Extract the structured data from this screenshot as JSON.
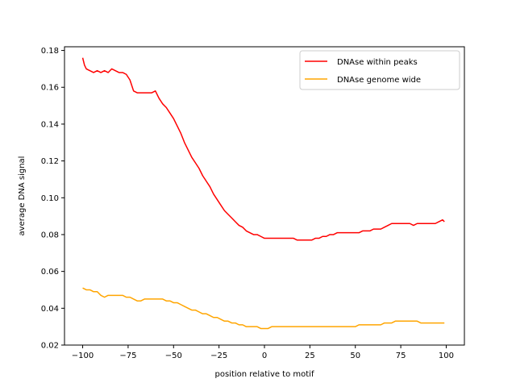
{
  "chart_data": {
    "type": "line",
    "title": "",
    "xlabel": "position relative to motif",
    "ylabel": "average DNA signal",
    "xlim": [
      -110,
      110
    ],
    "ylim": [
      0.02,
      0.182
    ],
    "xticks": [
      -100,
      -75,
      -50,
      -25,
      0,
      25,
      50,
      75,
      100
    ],
    "xtick_labels": [
      "−100",
      "−75",
      "−50",
      "−25",
      "0",
      "25",
      "50",
      "75",
      "100"
    ],
    "yticks": [
      0.02,
      0.04,
      0.06,
      0.08,
      0.1,
      0.12,
      0.14,
      0.16,
      0.18
    ],
    "ytick_labels": [
      "0.02",
      "0.04",
      "0.06",
      "0.08",
      "0.10",
      "0.12",
      "0.14",
      "0.16",
      "0.18"
    ],
    "legend_position": "top-right",
    "grid": false,
    "series": [
      {
        "name": "DNAse within peaks",
        "color": "#ff0000",
        "points": [
          [
            -100,
            0.176
          ],
          [
            -99,
            0.172
          ],
          [
            -98,
            0.17
          ],
          [
            -96,
            0.169
          ],
          [
            -94,
            0.168
          ],
          [
            -92,
            0.169
          ],
          [
            -90,
            0.168
          ],
          [
            -88,
            0.169
          ],
          [
            -86,
            0.168
          ],
          [
            -84,
            0.17
          ],
          [
            -82,
            0.169
          ],
          [
            -80,
            0.168
          ],
          [
            -78,
            0.168
          ],
          [
            -76,
            0.167
          ],
          [
            -74,
            0.164
          ],
          [
            -72,
            0.158
          ],
          [
            -70,
            0.157
          ],
          [
            -68,
            0.157
          ],
          [
            -66,
            0.157
          ],
          [
            -64,
            0.157
          ],
          [
            -62,
            0.157
          ],
          [
            -60,
            0.158
          ],
          [
            -58,
            0.154
          ],
          [
            -56,
            0.151
          ],
          [
            -54,
            0.149
          ],
          [
            -52,
            0.146
          ],
          [
            -50,
            0.143
          ],
          [
            -48,
            0.139
          ],
          [
            -46,
            0.135
          ],
          [
            -44,
            0.13
          ],
          [
            -42,
            0.126
          ],
          [
            -40,
            0.122
          ],
          [
            -38,
            0.119
          ],
          [
            -36,
            0.116
          ],
          [
            -34,
            0.112
          ],
          [
            -32,
            0.109
          ],
          [
            -30,
            0.106
          ],
          [
            -28,
            0.102
          ],
          [
            -26,
            0.099
          ],
          [
            -24,
            0.096
          ],
          [
            -22,
            0.093
          ],
          [
            -20,
            0.091
          ],
          [
            -18,
            0.089
          ],
          [
            -16,
            0.087
          ],
          [
            -14,
            0.085
          ],
          [
            -12,
            0.084
          ],
          [
            -10,
            0.082
          ],
          [
            -8,
            0.081
          ],
          [
            -6,
            0.08
          ],
          [
            -4,
            0.08
          ],
          [
            -2,
            0.079
          ],
          [
            0,
            0.078
          ],
          [
            2,
            0.078
          ],
          [
            4,
            0.078
          ],
          [
            6,
            0.078
          ],
          [
            8,
            0.078
          ],
          [
            10,
            0.078
          ],
          [
            12,
            0.078
          ],
          [
            14,
            0.078
          ],
          [
            16,
            0.078
          ],
          [
            18,
            0.077
          ],
          [
            20,
            0.077
          ],
          [
            22,
            0.077
          ],
          [
            24,
            0.077
          ],
          [
            26,
            0.077
          ],
          [
            28,
            0.078
          ],
          [
            30,
            0.078
          ],
          [
            32,
            0.079
          ],
          [
            34,
            0.079
          ],
          [
            36,
            0.08
          ],
          [
            38,
            0.08
          ],
          [
            40,
            0.081
          ],
          [
            42,
            0.081
          ],
          [
            44,
            0.081
          ],
          [
            46,
            0.081
          ],
          [
            48,
            0.081
          ],
          [
            50,
            0.081
          ],
          [
            52,
            0.081
          ],
          [
            54,
            0.082
          ],
          [
            56,
            0.082
          ],
          [
            58,
            0.082
          ],
          [
            60,
            0.083
          ],
          [
            62,
            0.083
          ],
          [
            64,
            0.083
          ],
          [
            66,
            0.084
          ],
          [
            68,
            0.085
          ],
          [
            70,
            0.086
          ],
          [
            72,
            0.086
          ],
          [
            74,
            0.086
          ],
          [
            76,
            0.086
          ],
          [
            78,
            0.086
          ],
          [
            80,
            0.086
          ],
          [
            82,
            0.085
          ],
          [
            84,
            0.086
          ],
          [
            86,
            0.086
          ],
          [
            88,
            0.086
          ],
          [
            90,
            0.086
          ],
          [
            92,
            0.086
          ],
          [
            94,
            0.086
          ],
          [
            96,
            0.087
          ],
          [
            98,
            0.088
          ],
          [
            99,
            0.087
          ]
        ]
      },
      {
        "name": "DNAse genome wide",
        "color": "#ffa500",
        "points": [
          [
            -100,
            0.051
          ],
          [
            -98,
            0.05
          ],
          [
            -96,
            0.05
          ],
          [
            -94,
            0.049
          ],
          [
            -92,
            0.049
          ],
          [
            -90,
            0.047
          ],
          [
            -88,
            0.046
          ],
          [
            -86,
            0.047
          ],
          [
            -84,
            0.047
          ],
          [
            -82,
            0.047
          ],
          [
            -80,
            0.047
          ],
          [
            -78,
            0.047
          ],
          [
            -76,
            0.046
          ],
          [
            -74,
            0.046
          ],
          [
            -72,
            0.045
          ],
          [
            -70,
            0.044
          ],
          [
            -68,
            0.044
          ],
          [
            -66,
            0.045
          ],
          [
            -64,
            0.045
          ],
          [
            -62,
            0.045
          ],
          [
            -60,
            0.045
          ],
          [
            -58,
            0.045
          ],
          [
            -56,
            0.045
          ],
          [
            -54,
            0.044
          ],
          [
            -52,
            0.044
          ],
          [
            -50,
            0.043
          ],
          [
            -48,
            0.043
          ],
          [
            -46,
            0.042
          ],
          [
            -44,
            0.041
          ],
          [
            -42,
            0.04
          ],
          [
            -40,
            0.039
          ],
          [
            -38,
            0.039
          ],
          [
            -36,
            0.038
          ],
          [
            -34,
            0.037
          ],
          [
            -32,
            0.037
          ],
          [
            -30,
            0.036
          ],
          [
            -28,
            0.035
          ],
          [
            -26,
            0.035
          ],
          [
            -24,
            0.034
          ],
          [
            -22,
            0.033
          ],
          [
            -20,
            0.033
          ],
          [
            -18,
            0.032
          ],
          [
            -16,
            0.032
          ],
          [
            -14,
            0.031
          ],
          [
            -12,
            0.031
          ],
          [
            -10,
            0.03
          ],
          [
            -8,
            0.03
          ],
          [
            -6,
            0.03
          ],
          [
            -4,
            0.03
          ],
          [
            -2,
            0.029
          ],
          [
            0,
            0.029
          ],
          [
            2,
            0.029
          ],
          [
            4,
            0.03
          ],
          [
            6,
            0.03
          ],
          [
            8,
            0.03
          ],
          [
            10,
            0.03
          ],
          [
            12,
            0.03
          ],
          [
            14,
            0.03
          ],
          [
            16,
            0.03
          ],
          [
            18,
            0.03
          ],
          [
            20,
            0.03
          ],
          [
            22,
            0.03
          ],
          [
            24,
            0.03
          ],
          [
            26,
            0.03
          ],
          [
            28,
            0.03
          ],
          [
            30,
            0.03
          ],
          [
            32,
            0.03
          ],
          [
            34,
            0.03
          ],
          [
            36,
            0.03
          ],
          [
            38,
            0.03
          ],
          [
            40,
            0.03
          ],
          [
            42,
            0.03
          ],
          [
            44,
            0.03
          ],
          [
            46,
            0.03
          ],
          [
            48,
            0.03
          ],
          [
            50,
            0.03
          ],
          [
            52,
            0.031
          ],
          [
            54,
            0.031
          ],
          [
            56,
            0.031
          ],
          [
            58,
            0.031
          ],
          [
            60,
            0.031
          ],
          [
            62,
            0.031
          ],
          [
            64,
            0.031
          ],
          [
            66,
            0.032
          ],
          [
            68,
            0.032
          ],
          [
            70,
            0.032
          ],
          [
            72,
            0.033
          ],
          [
            74,
            0.033
          ],
          [
            76,
            0.033
          ],
          [
            78,
            0.033
          ],
          [
            80,
            0.033
          ],
          [
            82,
            0.033
          ],
          [
            84,
            0.033
          ],
          [
            86,
            0.032
          ],
          [
            88,
            0.032
          ],
          [
            90,
            0.032
          ],
          [
            92,
            0.032
          ],
          [
            94,
            0.032
          ],
          [
            96,
            0.032
          ],
          [
            98,
            0.032
          ],
          [
            99,
            0.032
          ]
        ]
      }
    ]
  }
}
